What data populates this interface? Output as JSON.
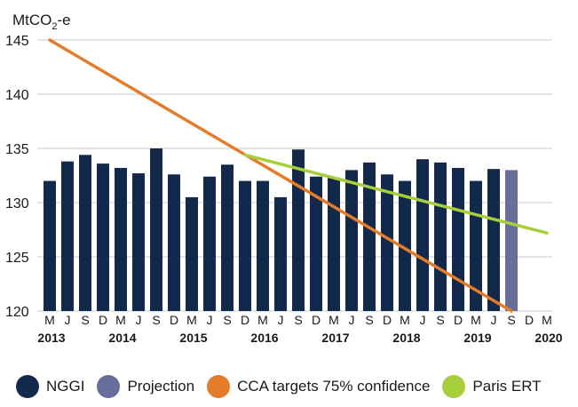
{
  "chart_data": {
    "type": "bar",
    "ylabel": "MtCO",
    "ylabel_sub": "2",
    "ylabel_suffix": "-e",
    "ylim": [
      120,
      145
    ],
    "yticks": [
      120,
      125,
      130,
      135,
      140,
      145
    ],
    "grid": true,
    "categories": [
      "M",
      "J",
      "S",
      "D",
      "M",
      "J",
      "S",
      "D",
      "M",
      "J",
      "S",
      "D",
      "M",
      "J",
      "S",
      "D",
      "M",
      "J",
      "S",
      "D",
      "M",
      "J",
      "S",
      "D",
      "M",
      "J",
      "S",
      "D",
      "M"
    ],
    "years": [
      {
        "label": "2013",
        "index": 0
      },
      {
        "label": "2014",
        "index": 4
      },
      {
        "label": "2015",
        "index": 8
      },
      {
        "label": "2016",
        "index": 12
      },
      {
        "label": "2017",
        "index": 16
      },
      {
        "label": "2018",
        "index": 20
      },
      {
        "label": "2019",
        "index": 24
      },
      {
        "label": "2020",
        "index": 28
      }
    ],
    "series": [
      {
        "name": "NGGI",
        "type": "bar",
        "color": "#13294b",
        "values": [
          132.0,
          133.8,
          134.4,
          133.6,
          133.2,
          132.7,
          135.0,
          132.6,
          130.5,
          132.4,
          133.5,
          132.0,
          132.0,
          130.5,
          134.9,
          132.4,
          132.3,
          133.0,
          133.7,
          132.6,
          132.0,
          134.0,
          133.7,
          133.2,
          132.0,
          133.1,
          null,
          null,
          null
        ]
      },
      {
        "name": "Projection",
        "type": "bar",
        "color": "#666e99",
        "values": [
          null,
          null,
          null,
          null,
          null,
          null,
          null,
          null,
          null,
          null,
          null,
          null,
          null,
          null,
          null,
          null,
          null,
          null,
          null,
          null,
          null,
          null,
          null,
          null,
          null,
          null,
          133.0,
          null,
          null
        ]
      },
      {
        "name": "CCA targets 75% confidence",
        "type": "line",
        "color": "#e57c29",
        "points": [
          {
            "index": 0,
            "value": 145.0
          },
          {
            "index": 26,
            "value": 120.0
          }
        ]
      },
      {
        "name": "Paris ERT",
        "type": "line",
        "color": "#a6cf3b",
        "points": [
          {
            "index": 11,
            "value": 134.4
          },
          {
            "index": 28,
            "value": 127.2
          }
        ]
      }
    ]
  },
  "legend": [
    {
      "label": "NGGI",
      "color": "#13294b"
    },
    {
      "label": "Projection",
      "color": "#666e99"
    },
    {
      "label": "CCA targets 75% confidence",
      "color": "#e57c29"
    },
    {
      "label": "Paris ERT",
      "color": "#a6cf3b"
    }
  ]
}
